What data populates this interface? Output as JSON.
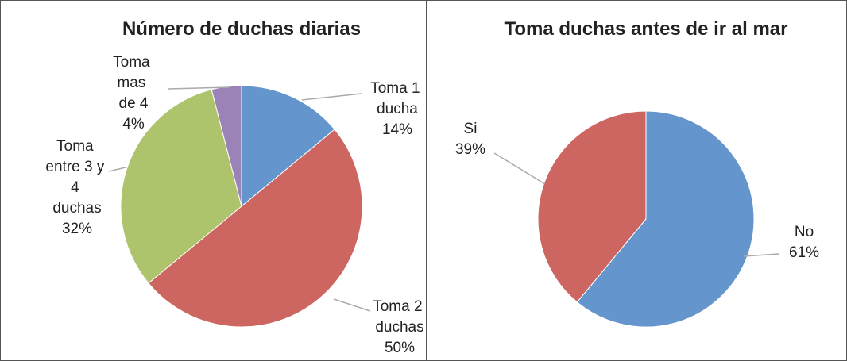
{
  "chart_data": [
    {
      "type": "pie",
      "title": "Número de duchas diarias",
      "categories": [
        "Toma 1 ducha",
        "Toma 2 duchas",
        "Toma entre 3 y 4 duchas",
        "Toma mas de 4"
      ],
      "values": [
        14,
        50,
        32,
        4
      ],
      "value_labels": [
        "14%",
        "50%",
        "32%",
        "4%"
      ],
      "colors": [
        "#6495cd",
        "#cd6660",
        "#adc36c",
        "#9b82b7"
      ]
    },
    {
      "type": "pie",
      "title": "Toma duchas antes de ir al mar",
      "categories": [
        "No",
        "Si"
      ],
      "values": [
        61,
        39
      ],
      "value_labels": [
        "61%",
        "39%"
      ],
      "colors": [
        "#6495cd",
        "#cd6660"
      ]
    }
  ]
}
